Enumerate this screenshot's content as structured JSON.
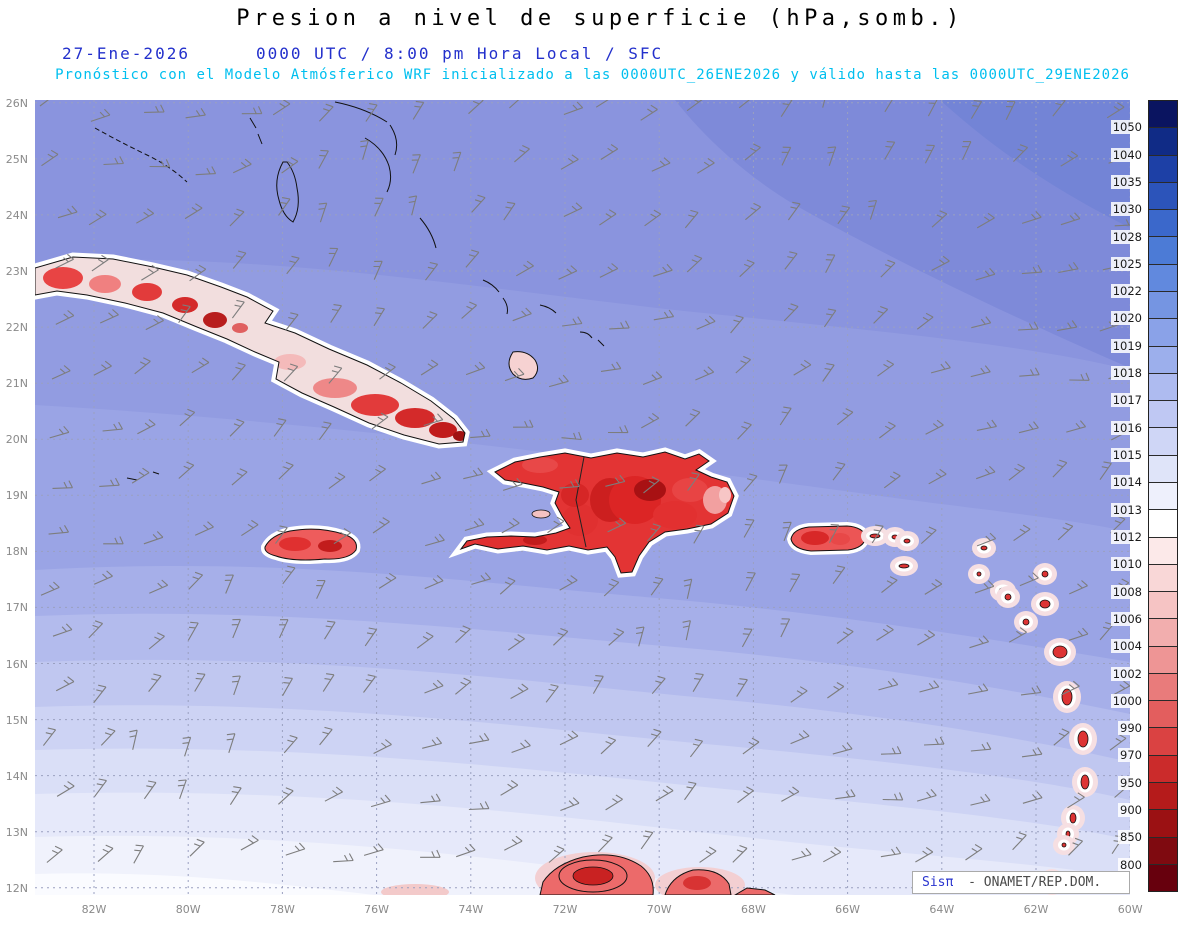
{
  "header": {
    "title": "Presion a nivel de superficie (hPa,somb.)",
    "date": "27-Ene-2026",
    "time": "0000 UTC / 8:00 pm Hora Local / SFC",
    "forecast": "Pronóstico con el Modelo Atmósferico WRF inicializado a las 0000UTC_26ENE2026 y válido hasta las  0000UTC_29ENE2026"
  },
  "axes": {
    "lat_labels": [
      "26N",
      "25N",
      "24N",
      "23N",
      "22N",
      "21N",
      "20N",
      "19N",
      "18N",
      "17N",
      "16N",
      "15N",
      "14N",
      "13N",
      "12N"
    ],
    "lon_labels": [
      "82W",
      "80W",
      "78W",
      "76W",
      "74W",
      "72W",
      "70W",
      "68W",
      "66W",
      "64W",
      "62W",
      "60W"
    ]
  },
  "colorbar": {
    "unit": "hPa",
    "labels": [
      "1050",
      "1040",
      "1035",
      "1030",
      "1028",
      "1025",
      "1022",
      "1020",
      "1019",
      "1018",
      "1017",
      "1016",
      "1015",
      "1014",
      "1013",
      "1012",
      "1010",
      "1008",
      "1006",
      "1004",
      "1002",
      "1000",
      "990",
      "970",
      "950",
      "900",
      "850",
      "800"
    ],
    "colors": [
      "#0a1460",
      "#102b86",
      "#1d40a6",
      "#2c54ba",
      "#3b68cb",
      "#4c7bd6",
      "#6189de",
      "#7595e2",
      "#8aa2e8",
      "#9cafec",
      "#aebbf0",
      "#bfc8f3",
      "#cfd6f6",
      "#dfe4f9",
      "#eef0fc",
      "#ffffff",
      "#fce9e9",
      "#f9d7d7",
      "#f6c4c4",
      "#f2aeae",
      "#ee9595",
      "#e97b7b",
      "#e35e5e",
      "#da4242",
      "#cb2b2b",
      "#b51b1b",
      "#9b1113",
      "#7f0a10",
      "#67000d"
    ]
  },
  "credit": {
    "brand": "Sisπ",
    "text": "- ONAMET/REP.DOM."
  },
  "wind": {
    "color": "#7d7d7d"
  },
  "theme": {
    "header_blue": "#2330cc",
    "header_cyan": "#00bfef",
    "grid_gray": "#9aa0c0"
  }
}
